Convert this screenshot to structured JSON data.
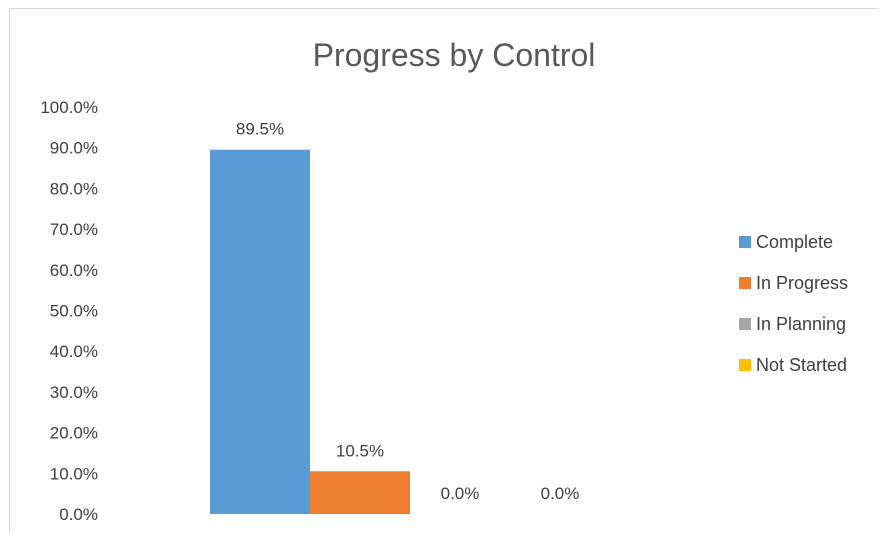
{
  "chart_data": {
    "type": "bar",
    "title": "Progress by Control",
    "xlabel": "",
    "ylabel": "",
    "ylim": [
      0,
      100
    ],
    "yticks": [
      "0.0%",
      "10.0%",
      "20.0%",
      "30.0%",
      "40.0%",
      "50.0%",
      "60.0%",
      "70.0%",
      "80.0%",
      "90.0%",
      "100.0%"
    ],
    "grid": false,
    "legend_position": "right",
    "series": [
      {
        "name": "Complete",
        "value": 89.5,
        "label": "89.5%",
        "color": "#5b9bd5"
      },
      {
        "name": "In Progress",
        "value": 10.5,
        "label": "10.5%",
        "color": "#ed7d31"
      },
      {
        "name": "In Planning",
        "value": 0.0,
        "label": "0.0%",
        "color": "#a5a5a5"
      },
      {
        "name": "Not Started",
        "value": 0.0,
        "label": "0.0%",
        "color": "#ffc000"
      }
    ]
  }
}
